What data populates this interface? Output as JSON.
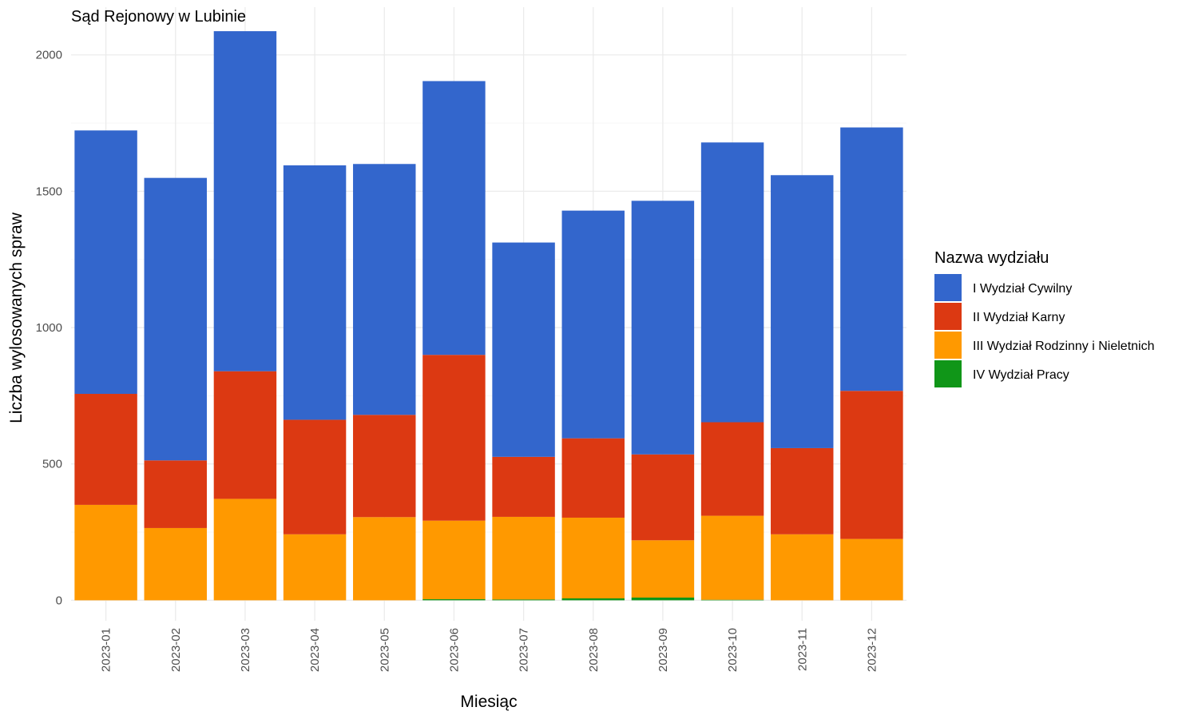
{
  "chart_data": {
    "type": "bar",
    "stacked": true,
    "title": "Sąd Rejonowy w Lubinie",
    "xlabel": "Miesiąc",
    "ylabel": "Liczba wylosowanych spraw",
    "ylim": [
      -75,
      2175
    ],
    "yticks": [
      0,
      500,
      1000,
      1500,
      2000
    ],
    "grid": true,
    "legend_position": "right",
    "legend_title": "Nazwa wydziału",
    "categories": [
      "2023-01",
      "2023-02",
      "2023-03",
      "2023-04",
      "2023-05",
      "2023-06",
      "2023-07",
      "2023-08",
      "2023-09",
      "2023-10",
      "2023-11",
      "2023-12"
    ],
    "series": [
      {
        "name": "IV Wydział Pracy",
        "color": "#109618",
        "values": [
          0,
          0,
          0,
          0,
          0,
          4,
          3,
          7,
          10,
          2,
          0,
          0
        ]
      },
      {
        "name": "III Wydział Rodzinny i Nieletnich",
        "color": "#FF9900",
        "values": [
          350,
          265,
          372,
          242,
          305,
          288,
          303,
          296,
          210,
          308,
          242,
          225
        ]
      },
      {
        "name": "II Wydział Karny",
        "color": "#DC3912",
        "values": [
          407,
          248,
          468,
          420,
          375,
          608,
          220,
          291,
          315,
          343,
          316,
          543
        ]
      },
      {
        "name": "I Wydział Cywilny",
        "color": "#3366CC",
        "values": [
          966,
          1036,
          1247,
          933,
          920,
          1004,
          786,
          835,
          930,
          1026,
          1001,
          966
        ]
      }
    ],
    "legend_order": [
      "I Wydział Cywilny",
      "II Wydział Karny",
      "III Wydział Rodzinny i Nieletnich",
      "IV Wydział Pracy"
    ]
  }
}
